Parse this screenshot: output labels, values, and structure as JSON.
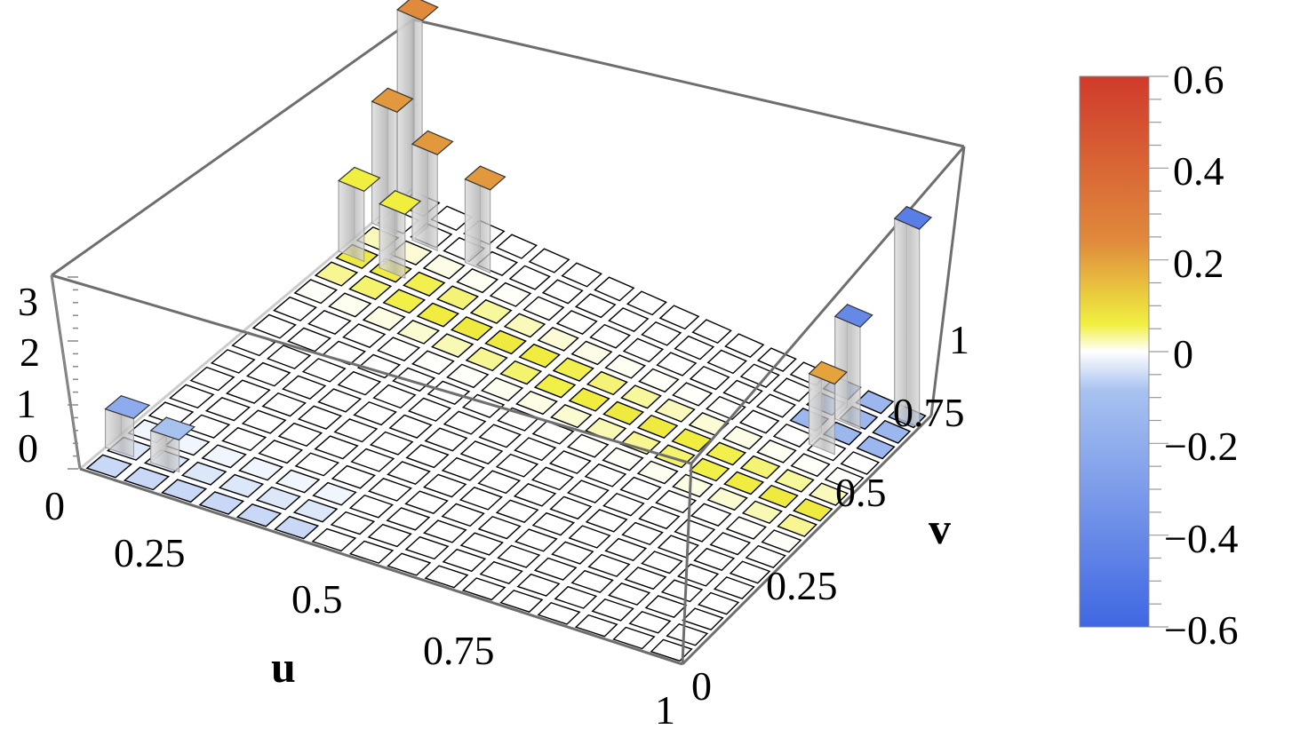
{
  "chart_data": {
    "type": "bar3d",
    "xlabel": "u",
    "ylabel": "v",
    "zlabel": "",
    "x_ticks": [
      "0",
      "0.25",
      "0.5",
      "0.75",
      "1"
    ],
    "y_ticks": [
      "0",
      "0.25",
      "0.5",
      "0.75",
      "1"
    ],
    "z_ticks": [
      "0",
      "1",
      "2",
      "3"
    ],
    "xlim": [
      0,
      1
    ],
    "ylim": [
      0,
      1
    ],
    "zlim": [
      0,
      3
    ],
    "grid_size": 16,
    "colorbar": {
      "ticks": [
        "0.6",
        "0.4",
        "0.2",
        "0",
        "−0.2",
        "−0.4",
        "−0.6"
      ],
      "range": [
        -0.6,
        0.6
      ],
      "colors": [
        "#d03a2c",
        "#e08a3c",
        "#f0ef40",
        "#ffffff",
        "#a8c2f0",
        "#3f67e2"
      ],
      "placement": "right"
    },
    "bars": [
      {
        "u": 0,
        "v": 1,
        "height": 3.0,
        "color_value": 0.25
      },
      {
        "u": 1,
        "v": 1,
        "height": 3.1,
        "color_value": -0.5
      },
      {
        "u": 0,
        "v": 0.9,
        "height": 1.9,
        "color_value": 0.22
      },
      {
        "u": 0.1,
        "v": 0.9,
        "height": 1.5,
        "color_value": 0.22
      },
      {
        "u": 0.2,
        "v": 0.9,
        "height": 1.3,
        "color_value": 0.22
      },
      {
        "u": 0.9,
        "v": 0.9,
        "height": 1.6,
        "color_value": -0.45
      },
      {
        "u": 0,
        "v": 0.8,
        "height": 1.1,
        "color_value": 0.05
      },
      {
        "u": 0.1,
        "v": 0.8,
        "height": 1.0,
        "color_value": 0.05
      },
      {
        "u": 0.9,
        "v": 0.8,
        "height": 1.1,
        "color_value": 0.2
      },
      {
        "u": 0,
        "v": 0.1,
        "height": 0.6,
        "color_value": -0.3
      },
      {
        "u": 0.1,
        "v": 0.1,
        "height": 0.5,
        "color_value": -0.2
      }
    ]
  }
}
